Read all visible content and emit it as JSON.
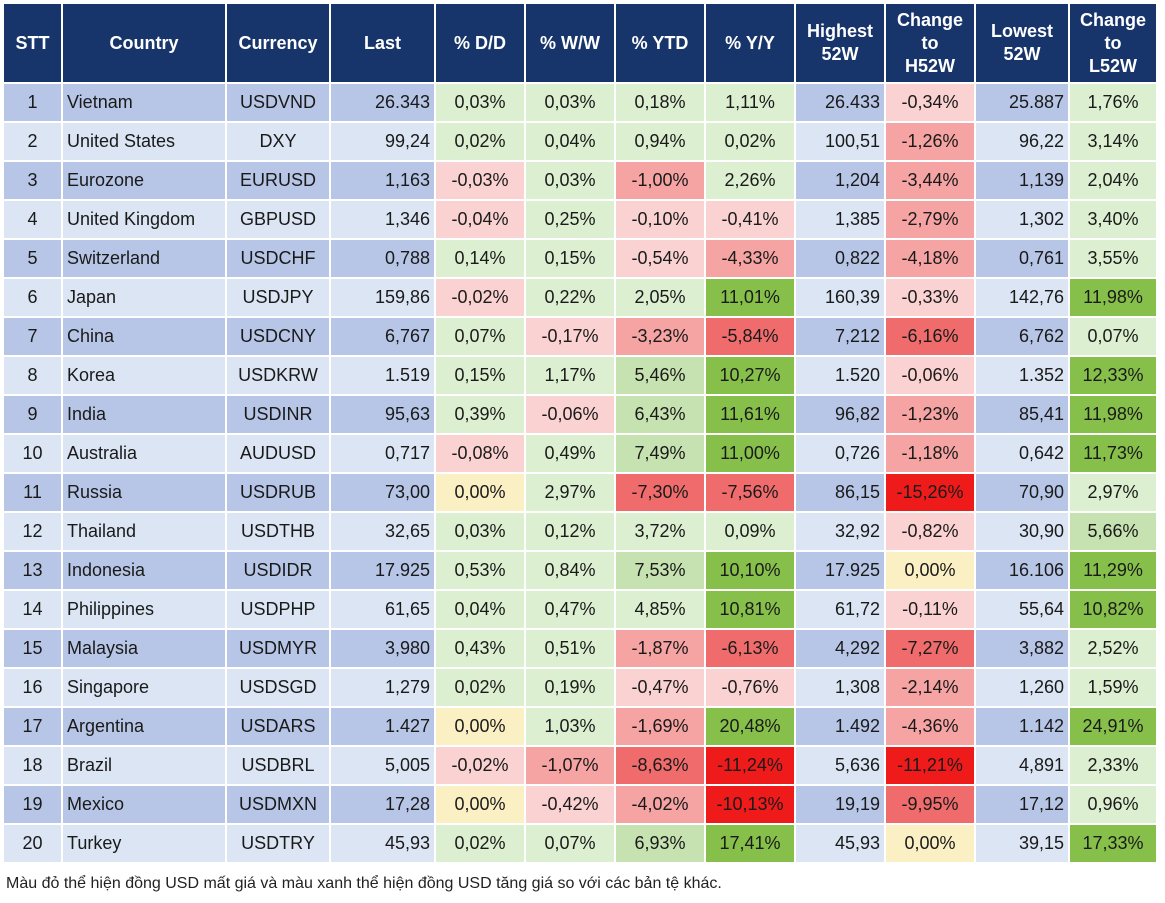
{
  "headers": {
    "stt": "STT",
    "country": "Country",
    "currency": "Currency",
    "last": "Last",
    "dd": "% D/D",
    "ww": "% W/W",
    "ytd": "% YTD",
    "yy": "% Y/Y",
    "high": "Highest\n52W",
    "chg_high": "Change\nto\nH52W",
    "low": "Lowest\n52W",
    "chg_low": "Change\nto\nL52W"
  },
  "color_scale": {
    "dark_green": "#86c04a",
    "light_green": "#c6e2b0",
    "very_light_green": "#dcefd0",
    "yellow": "#fbefc4",
    "very_light_red": "#fbd2d2",
    "light_red": "#f5a3a3",
    "medium_red": "#f06c6c",
    "dark_red": "#ef1b1b",
    "row_blue": "#b7c6e6",
    "row_light_blue": "#dbe5f3",
    "header_blue": "#17356b"
  },
  "rows": [
    {
      "stt": "1",
      "country": "Vietnam",
      "currency": "USDVND",
      "last": "26.343",
      "dd": "0,03%",
      "ww": "0,03%",
      "ytd": "0,18%",
      "yy": "1,11%",
      "high": "26.433",
      "chg_high": "-0,34%",
      "low": "25.887",
      "chg_low": "1,76%"
    },
    {
      "stt": "2",
      "country": "United States",
      "currency": "DXY",
      "last": "99,24",
      "dd": "0,02%",
      "ww": "0,04%",
      "ytd": "0,94%",
      "yy": "0,02%",
      "high": "100,51",
      "chg_high": "-1,26%",
      "low": "96,22",
      "chg_low": "3,14%"
    },
    {
      "stt": "3",
      "country": "Eurozone",
      "currency": "EURUSD",
      "last": "1,163",
      "dd": "-0,03%",
      "ww": "0,03%",
      "ytd": "-1,00%",
      "yy": "2,26%",
      "high": "1,204",
      "chg_high": "-3,44%",
      "low": "1,139",
      "chg_low": "2,04%"
    },
    {
      "stt": "4",
      "country": "United Kingdom",
      "currency": "GBPUSD",
      "last": "1,346",
      "dd": "-0,04%",
      "ww": "0,25%",
      "ytd": "-0,10%",
      "yy": "-0,41%",
      "high": "1,385",
      "chg_high": "-2,79%",
      "low": "1,302",
      "chg_low": "3,40%"
    },
    {
      "stt": "5",
      "country": "Switzerland",
      "currency": "USDCHF",
      "last": "0,788",
      "dd": "0,14%",
      "ww": "0,15%",
      "ytd": "-0,54%",
      "yy": "-4,33%",
      "high": "0,822",
      "chg_high": "-4,18%",
      "low": "0,761",
      "chg_low": "3,55%"
    },
    {
      "stt": "6",
      "country": "Japan",
      "currency": "USDJPY",
      "last": "159,86",
      "dd": "-0,02%",
      "ww": "0,22%",
      "ytd": "2,05%",
      "yy": "11,01%",
      "high": "160,39",
      "chg_high": "-0,33%",
      "low": "142,76",
      "chg_low": "11,98%"
    },
    {
      "stt": "7",
      "country": "China",
      "currency": "USDCNY",
      "last": "6,767",
      "dd": "0,07%",
      "ww": "-0,17%",
      "ytd": "-3,23%",
      "yy": "-5,84%",
      "high": "7,212",
      "chg_high": "-6,16%",
      "low": "6,762",
      "chg_low": "0,07%"
    },
    {
      "stt": "8",
      "country": "Korea",
      "currency": "USDKRW",
      "last": "1.519",
      "dd": "0,15%",
      "ww": "1,17%",
      "ytd": "5,46%",
      "yy": "10,27%",
      "high": "1.520",
      "chg_high": "-0,06%",
      "low": "1.352",
      "chg_low": "12,33%"
    },
    {
      "stt": "9",
      "country": "India",
      "currency": "USDINR",
      "last": "95,63",
      "dd": "0,39%",
      "ww": "-0,06%",
      "ytd": "6,43%",
      "yy": "11,61%",
      "high": "96,82",
      "chg_high": "-1,23%",
      "low": "85,41",
      "chg_low": "11,98%"
    },
    {
      "stt": "10",
      "country": "Australia",
      "currency": "AUDUSD",
      "last": "0,717",
      "dd": "-0,08%",
      "ww": "0,49%",
      "ytd": "7,49%",
      "yy": "11,00%",
      "high": "0,726",
      "chg_high": "-1,18%",
      "low": "0,642",
      "chg_low": "11,73%"
    },
    {
      "stt": "11",
      "country": "Russia",
      "currency": "USDRUB",
      "last": "73,00",
      "dd": "0,00%",
      "ww": "2,97%",
      "ytd": "-7,30%",
      "yy": "-7,56%",
      "high": "86,15",
      "chg_high": "-15,26%",
      "low": "70,90",
      "chg_low": "2,97%"
    },
    {
      "stt": "12",
      "country": "Thailand",
      "currency": "USDTHB",
      "last": "32,65",
      "dd": "0,03%",
      "ww": "0,12%",
      "ytd": "3,72%",
      "yy": "0,09%",
      "high": "32,92",
      "chg_high": "-0,82%",
      "low": "30,90",
      "chg_low": "5,66%"
    },
    {
      "stt": "13",
      "country": "Indonesia",
      "currency": "USDIDR",
      "last": "17.925",
      "dd": "0,53%",
      "ww": "0,84%",
      "ytd": "7,53%",
      "yy": "10,10%",
      "high": "17.925",
      "chg_high": "0,00%",
      "low": "16.106",
      "chg_low": "11,29%"
    },
    {
      "stt": "14",
      "country": "Philippines",
      "currency": "USDPHP",
      "last": "61,65",
      "dd": "0,04%",
      "ww": "0,47%",
      "ytd": "4,85%",
      "yy": "10,81%",
      "high": "61,72",
      "chg_high": "-0,11%",
      "low": "55,64",
      "chg_low": "10,82%"
    },
    {
      "stt": "15",
      "country": "Malaysia",
      "currency": "USDMYR",
      "last": "3,980",
      "dd": "0,43%",
      "ww": "0,51%",
      "ytd": "-1,87%",
      "yy": "-6,13%",
      "high": "4,292",
      "chg_high": "-7,27%",
      "low": "3,882",
      "chg_low": "2,52%"
    },
    {
      "stt": "16",
      "country": "Singapore",
      "currency": "USDSGD",
      "last": "1,279",
      "dd": "0,02%",
      "ww": "0,19%",
      "ytd": "-0,47%",
      "yy": "-0,76%",
      "high": "1,308",
      "chg_high": "-2,14%",
      "low": "1,260",
      "chg_low": "1,59%"
    },
    {
      "stt": "17",
      "country": "Argentina",
      "currency": "USDARS",
      "last": "1.427",
      "dd": "0,00%",
      "ww": "1,03%",
      "ytd": "-1,69%",
      "yy": "20,48%",
      "high": "1.492",
      "chg_high": "-4,36%",
      "low": "1.142",
      "chg_low": "24,91%"
    },
    {
      "stt": "18",
      "country": "Brazil",
      "currency": "USDBRL",
      "last": "5,005",
      "dd": "-0,02%",
      "ww": "-1,07%",
      "ytd": "-8,63%",
      "yy": "-11,24%",
      "high": "5,636",
      "chg_high": "-11,21%",
      "low": "4,891",
      "chg_low": "2,33%"
    },
    {
      "stt": "19",
      "country": "Mexico",
      "currency": "USDMXN",
      "last": "17,28",
      "dd": "0,00%",
      "ww": "-0,42%",
      "ytd": "-4,02%",
      "yy": "-10,13%",
      "high": "19,19",
      "chg_high": "-9,95%",
      "low": "17,12",
      "chg_low": "0,96%"
    },
    {
      "stt": "20",
      "country": "Turkey",
      "currency": "USDTRY",
      "last": "45,93",
      "dd": "0,02%",
      "ww": "0,07%",
      "ytd": "6,93%",
      "yy": "17,41%",
      "high": "45,93",
      "chg_high": "0,00%",
      "low": "39,15",
      "chg_low": "17,33%"
    }
  ],
  "note": "Màu đỏ thể hiện đồng USD mất giá và màu xanh thể hiện đồng USD tăng giá so với các bản tệ khác."
}
